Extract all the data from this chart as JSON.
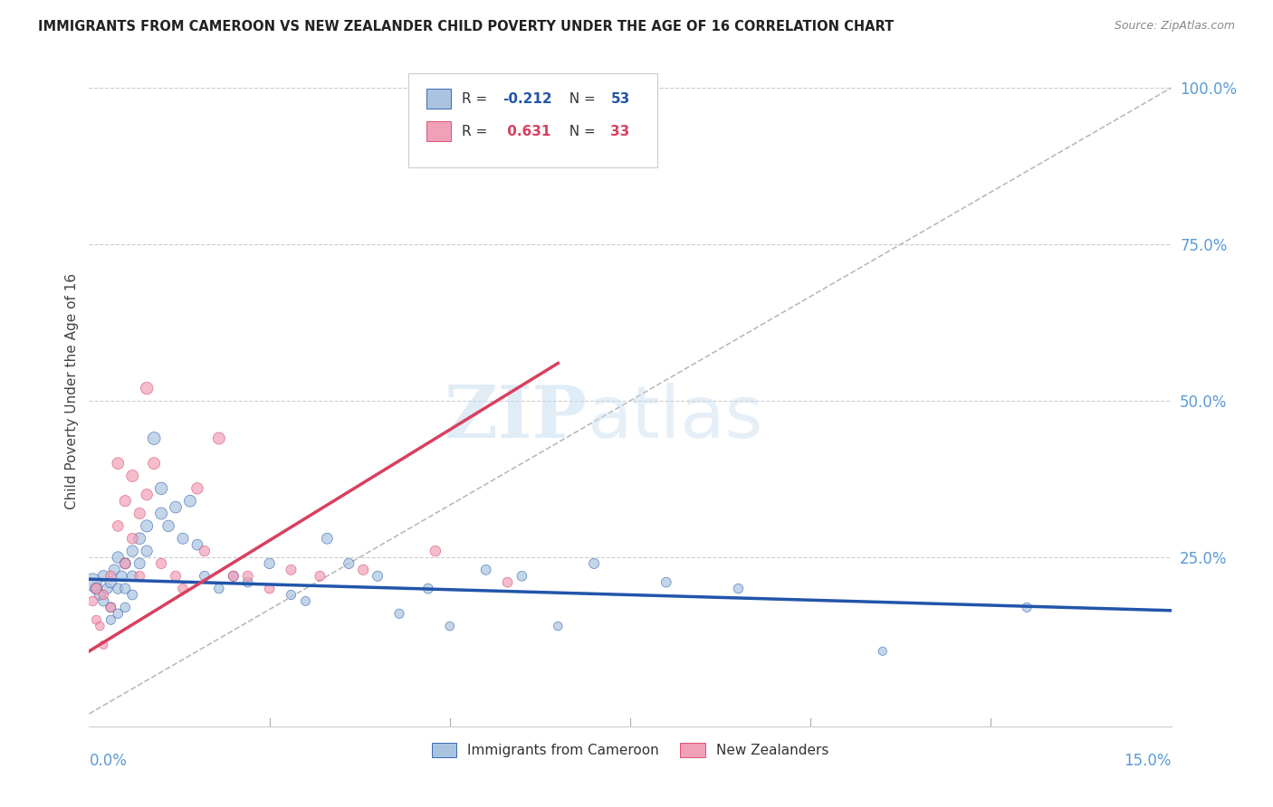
{
  "title": "IMMIGRANTS FROM CAMEROON VS NEW ZEALANDER CHILD POVERTY UNDER THE AGE OF 16 CORRELATION CHART",
  "source": "Source: ZipAtlas.com",
  "ylabel": "Child Poverty Under the Age of 16",
  "xmin": 0.0,
  "xmax": 0.15,
  "ymin": -0.02,
  "ymax": 1.05,
  "legend_blue_r": "-0.212",
  "legend_blue_n": "53",
  "legend_pink_r": "0.631",
  "legend_pink_n": "33",
  "blue_color": "#aac4e0",
  "blue_line_color": "#2255aa",
  "pink_color": "#f0a0b8",
  "pink_line_color": "#d84060",
  "ref_line_color": "#bbbbbb",
  "blue_scatter_x": [
    0.0005,
    0.001,
    0.0015,
    0.002,
    0.002,
    0.0025,
    0.003,
    0.003,
    0.003,
    0.0035,
    0.004,
    0.004,
    0.004,
    0.0045,
    0.005,
    0.005,
    0.005,
    0.006,
    0.006,
    0.006,
    0.007,
    0.007,
    0.008,
    0.008,
    0.009,
    0.01,
    0.01,
    0.011,
    0.012,
    0.013,
    0.014,
    0.015,
    0.016,
    0.018,
    0.02,
    0.022,
    0.025,
    0.028,
    0.03,
    0.033,
    0.036,
    0.04,
    0.043,
    0.047,
    0.05,
    0.055,
    0.06,
    0.065,
    0.07,
    0.08,
    0.09,
    0.11,
    0.13
  ],
  "blue_scatter_y": [
    0.21,
    0.2,
    0.19,
    0.22,
    0.18,
    0.2,
    0.21,
    0.17,
    0.15,
    0.23,
    0.25,
    0.2,
    0.16,
    0.22,
    0.24,
    0.2,
    0.17,
    0.26,
    0.22,
    0.19,
    0.28,
    0.24,
    0.3,
    0.26,
    0.44,
    0.36,
    0.32,
    0.3,
    0.33,
    0.28,
    0.34,
    0.27,
    0.22,
    0.2,
    0.22,
    0.21,
    0.24,
    0.19,
    0.18,
    0.28,
    0.24,
    0.22,
    0.16,
    0.2,
    0.14,
    0.23,
    0.22,
    0.14,
    0.24,
    0.21,
    0.2,
    0.1,
    0.17
  ],
  "pink_scatter_x": [
    0.0005,
    0.001,
    0.001,
    0.0015,
    0.002,
    0.002,
    0.003,
    0.003,
    0.004,
    0.004,
    0.005,
    0.005,
    0.006,
    0.006,
    0.007,
    0.007,
    0.008,
    0.008,
    0.009,
    0.01,
    0.012,
    0.013,
    0.015,
    0.016,
    0.018,
    0.02,
    0.022,
    0.025,
    0.028,
    0.032,
    0.038,
    0.048,
    0.058
  ],
  "pink_scatter_y": [
    0.18,
    0.2,
    0.15,
    0.14,
    0.19,
    0.11,
    0.22,
    0.17,
    0.4,
    0.3,
    0.34,
    0.24,
    0.38,
    0.28,
    0.32,
    0.22,
    0.52,
    0.35,
    0.4,
    0.24,
    0.22,
    0.2,
    0.36,
    0.26,
    0.44,
    0.22,
    0.22,
    0.2,
    0.23,
    0.22,
    0.23,
    0.26,
    0.21
  ],
  "blue_sizes": [
    200,
    90,
    75,
    80,
    65,
    70,
    80,
    65,
    55,
    75,
    80,
    68,
    58,
    70,
    78,
    66,
    58,
    80,
    70,
    62,
    85,
    74,
    90,
    78,
    100,
    95,
    88,
    82,
    85,
    76,
    86,
    72,
    62,
    58,
    65,
    60,
    68,
    55,
    52,
    74,
    66,
    65,
    55,
    62,
    50,
    62,
    60,
    48,
    64,
    60,
    58,
    44,
    54
  ],
  "pink_sizes": [
    60,
    68,
    52,
    48,
    58,
    44,
    65,
    55,
    85,
    72,
    80,
    65,
    88,
    72,
    78,
    62,
    95,
    80,
    88,
    68,
    65,
    58,
    82,
    68,
    90,
    65,
    65,
    60,
    64,
    64,
    66,
    70,
    62
  ]
}
